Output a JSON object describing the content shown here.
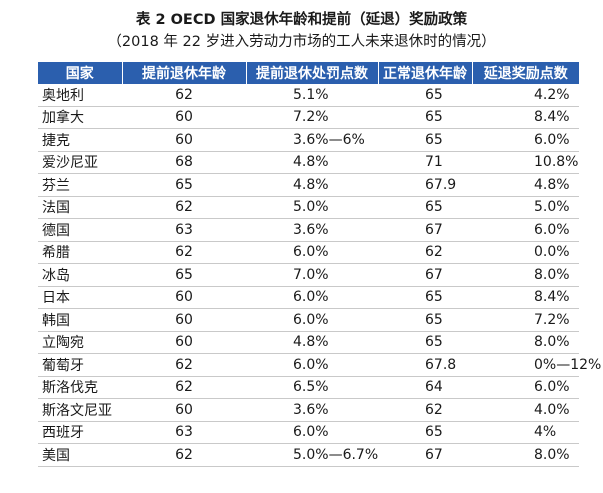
{
  "title": "表 2  OECD 国家退休年龄和提前（延退）奖励政策",
  "subtitle": "（2018 年 22 岁进入劳动力市场的工人未来退休时的情况）",
  "header_color": "#2b5fae",
  "columns": [
    "国家",
    "提前退休年龄",
    "提前退休处罚点数",
    "正常退休年龄",
    "延退奖励点数"
  ],
  "rows": [
    [
      "奥地利",
      "62",
      "5.1%",
      "65",
      "4.2%"
    ],
    [
      "加拿大",
      "60",
      "7.2%",
      "65",
      "8.4%"
    ],
    [
      "捷克",
      "60",
      "3.6%—6%",
      "65",
      "6.0%"
    ],
    [
      "爱沙尼亚",
      "68",
      "4.8%",
      "71",
      "10.8%"
    ],
    [
      "芬兰",
      "65",
      "4.8%",
      "67.9",
      "4.8%"
    ],
    [
      "法国",
      "62",
      "5.0%",
      "65",
      "5.0%"
    ],
    [
      "德国",
      "63",
      "3.6%",
      "67",
      "6.0%"
    ],
    [
      "希腊",
      "62",
      "6.0%",
      "62",
      "0.0%"
    ],
    [
      "冰岛",
      "65",
      "7.0%",
      "67",
      "8.0%"
    ],
    [
      "日本",
      "60",
      "6.0%",
      "65",
      "8.4%"
    ],
    [
      "韩国",
      "60",
      "6.0%",
      "65",
      "7.2%"
    ],
    [
      "立陶宛",
      "60",
      "4.8%",
      "65",
      "8.0%"
    ],
    [
      "葡萄牙",
      "62",
      "6.0%",
      "67.8",
      "0%—12%"
    ],
    [
      "斯洛伐克",
      "62",
      "6.5%",
      "64",
      "6.0%"
    ],
    [
      "斯洛文尼亚",
      "60",
      "3.6%",
      "62",
      "4.0%"
    ],
    [
      "西班牙",
      "63",
      "6.0%",
      "65",
      "4%"
    ],
    [
      "美国",
      "62",
      "5.0%—6.7%",
      "67",
      "8.0%"
    ]
  ]
}
